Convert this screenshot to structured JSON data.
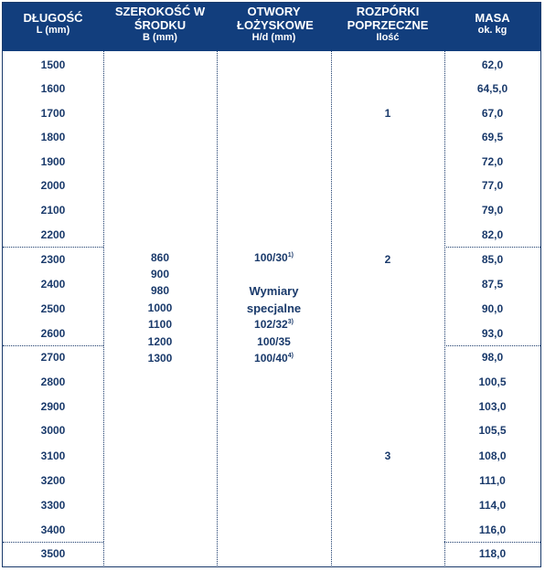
{
  "headers": [
    {
      "title": "DŁUGOŚĆ",
      "sub": "L (mm)"
    },
    {
      "title": "SZEROKOŚĆ W ŚRODKU",
      "sub": "B (mm)"
    },
    {
      "title": "OTWORY ŁOŻYSKOWE",
      "sub": "H/d (mm)"
    },
    {
      "title": "ROZPÓRKI POPRZECZNE",
      "sub": "Ilość"
    },
    {
      "title": "MASA",
      "sub": "ok. kg"
    }
  ],
  "lengths": [
    "1500",
    "1600",
    "1700",
    "1800",
    "1900",
    "2000",
    "2100",
    "2200",
    "2300",
    "2400",
    "2500",
    "2600",
    "2700",
    "2800",
    "2900",
    "3000",
    "3100",
    "3200",
    "3300",
    "3400",
    "3500"
  ],
  "masses": [
    "62,0",
    "64,5,0",
    "67,0",
    "69,5",
    "72,0",
    "77,0",
    "79,0",
    "82,0",
    "85,0",
    "87,5",
    "90,0",
    "93,0",
    "98,0",
    "100,5",
    "103,0",
    "105,5",
    "108,0",
    "111,0",
    "114,0",
    "116,0",
    "118,0"
  ],
  "widths": [
    "860",
    "900",
    "980",
    "1000",
    "1100",
    "1200",
    "1300"
  ],
  "bearing": {
    "main": "100/30",
    "main_sup": "1)",
    "special_1": "Wymiary",
    "special_2": "specjalne",
    "opt1": "102/32",
    "opt1_sup": "3)",
    "opt2": "100/35",
    "opt3": "100/40",
    "opt3_sup": "4)"
  },
  "spacers": [
    "1",
    "2",
    "3"
  ]
}
